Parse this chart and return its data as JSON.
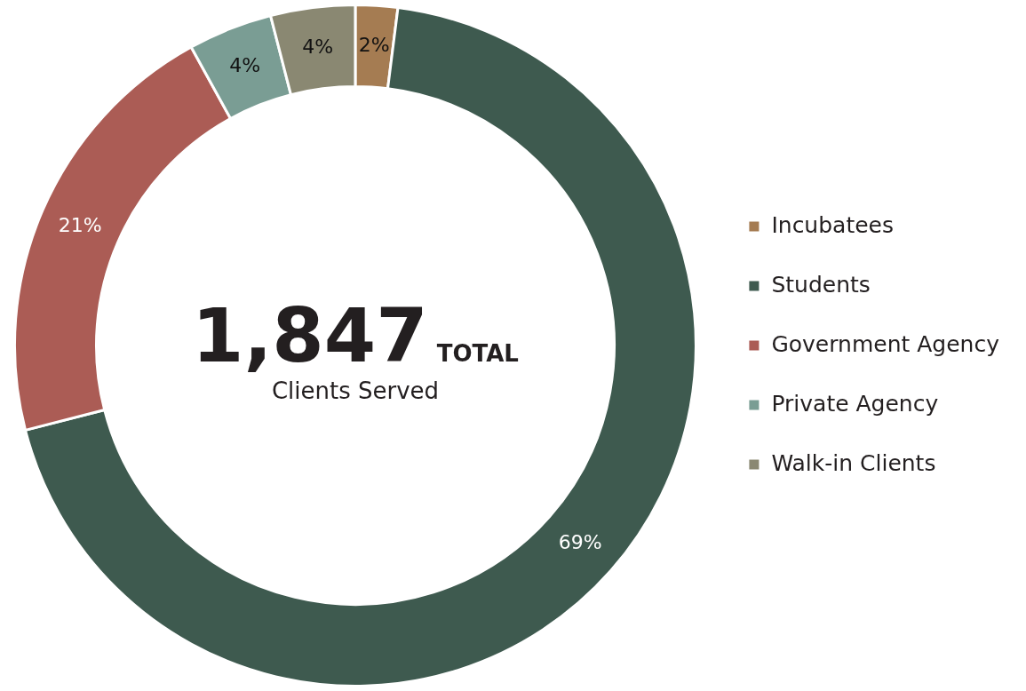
{
  "chart_data": {
    "type": "donut",
    "categories": [
      "Incubatees",
      "Students",
      "Government Agency",
      "Private Agency",
      "Walk-in Clients"
    ],
    "values": [
      2,
      69,
      21,
      4,
      4
    ],
    "colors": [
      "#a57c52",
      "#3e5a4f",
      "#ab5c55",
      "#7a9d94",
      "#8a8872"
    ],
    "value_labels": [
      "2%",
      "69%",
      "21%",
      "4%",
      "4%"
    ],
    "annotations": [
      "1,847",
      "TOTAL",
      "Clients Served"
    ],
    "legend": "right"
  }
}
